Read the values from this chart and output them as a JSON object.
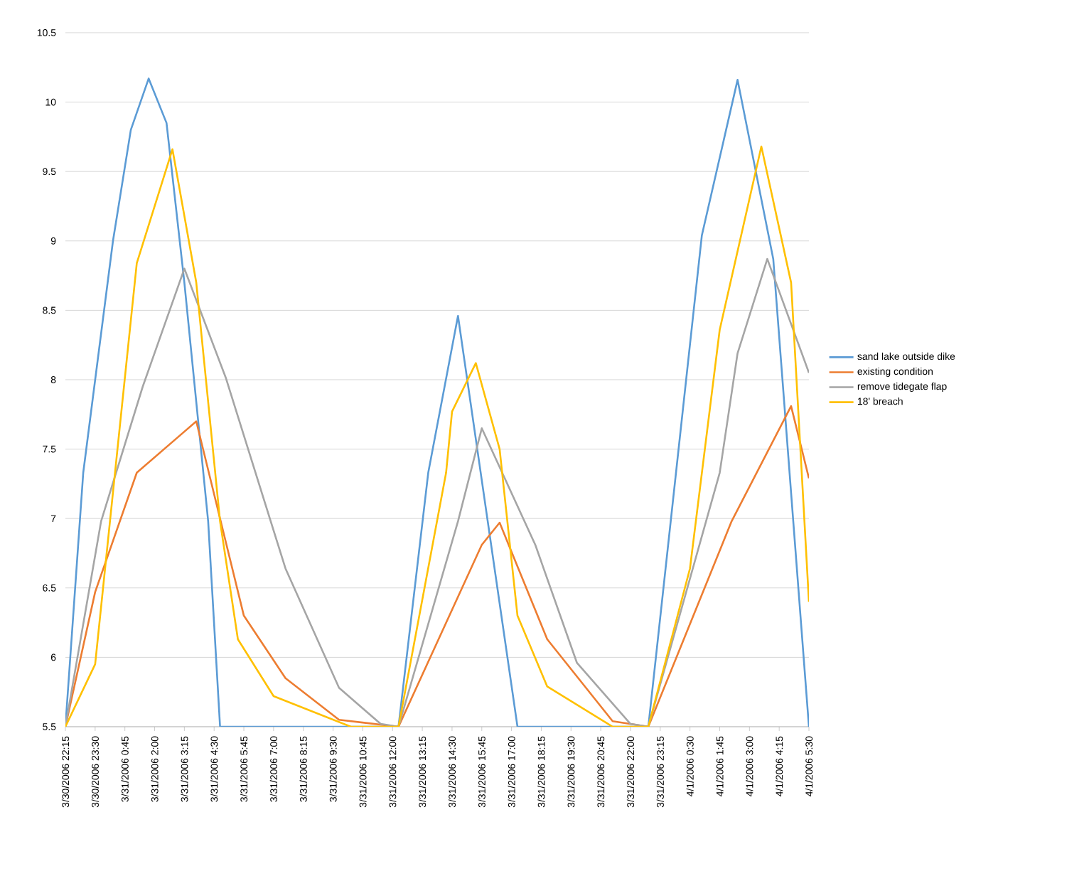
{
  "chart_data": {
    "type": "line",
    "xlim": [
      "2006-03-30T22:15",
      "2006-04-01T05:30"
    ],
    "ylim": [
      5.5,
      10.5
    ],
    "yticks": [
      5.5,
      6,
      6.5,
      7,
      7.5,
      8,
      8.5,
      9,
      9.5,
      10,
      10.5
    ],
    "xticks": [
      {
        "value": "2006-03-30T22:15",
        "label": "3/30/2006 22:15"
      },
      {
        "value": "2006-03-30T23:30",
        "label": "3/30/2006 23:30"
      },
      {
        "value": "2006-03-31T00:45",
        "label": "3/31/2006 0:45"
      },
      {
        "value": "2006-03-31T02:00",
        "label": "3/31/2006 2:00"
      },
      {
        "value": "2006-03-31T03:15",
        "label": "3/31/2006 3:15"
      },
      {
        "value": "2006-03-31T04:30",
        "label": "3/31/2006 4:30"
      },
      {
        "value": "2006-03-31T05:45",
        "label": "3/31/2006 5:45"
      },
      {
        "value": "2006-03-31T07:00",
        "label": "3/31/2006 7:00"
      },
      {
        "value": "2006-03-31T08:15",
        "label": "3/31/2006 8:15"
      },
      {
        "value": "2006-03-31T09:30",
        "label": "3/31/2006 9:30"
      },
      {
        "value": "2006-03-31T10:45",
        "label": "3/31/2006 10:45"
      },
      {
        "value": "2006-03-31T12:00",
        "label": "3/31/2006 12:00"
      },
      {
        "value": "2006-03-31T13:15",
        "label": "3/31/2006 13:15"
      },
      {
        "value": "2006-03-31T14:30",
        "label": "3/31/2006 14:30"
      },
      {
        "value": "2006-03-31T15:45",
        "label": "3/31/2006 15:45"
      },
      {
        "value": "2006-03-31T17:00",
        "label": "3/31/2006 17:00"
      },
      {
        "value": "2006-03-31T18:15",
        "label": "3/31/2006 18:15"
      },
      {
        "value": "2006-03-31T19:30",
        "label": "3/31/2006 19:30"
      },
      {
        "value": "2006-03-31T20:45",
        "label": "3/31/2006 20:45"
      },
      {
        "value": "2006-03-31T22:00",
        "label": "3/31/2006 22:00"
      },
      {
        "value": "2006-03-31T23:15",
        "label": "3/31/2006 23:15"
      },
      {
        "value": "2006-04-01T00:30",
        "label": "4/1/2006 0:30"
      },
      {
        "value": "2006-04-01T01:45",
        "label": "4/1/2006 1:45"
      },
      {
        "value": "2006-04-01T03:00",
        "label": "4/1/2006 3:00"
      },
      {
        "value": "2006-04-01T04:15",
        "label": "4/1/2006 4:15"
      },
      {
        "value": "2006-04-01T05:30",
        "label": "4/1/2006 5:30"
      }
    ],
    "grid": "y",
    "legend": "right",
    "marker": "none",
    "line_style": "solid",
    "series": [
      {
        "name": "sand lake outside dike",
        "color": "#5b9bd5",
        "x": [
          "2006-03-30T22:15",
          "2006-03-30T23:00",
          "2006-03-31T00:15",
          "2006-03-31T01:00",
          "2006-03-31T01:45",
          "2006-03-31T02:30",
          "2006-03-31T03:15",
          "2006-03-31T04:15",
          "2006-03-31T04:45",
          "2006-03-31T12:15",
          "2006-03-31T13:30",
          "2006-03-31T14:45",
          "2006-03-31T16:00",
          "2006-03-31T17:15",
          "2006-03-31T22:45",
          "2006-04-01T01:00",
          "2006-04-01T02:30",
          "2006-04-01T04:00",
          "2006-04-01T05:30"
        ],
        "values": [
          5.5,
          7.33,
          9.0,
          9.8,
          10.17,
          9.85,
          8.7,
          6.98,
          5.5,
          5.5,
          7.33,
          8.46,
          6.98,
          5.5,
          5.5,
          9.04,
          10.16,
          8.87,
          5.5
        ]
      },
      {
        "name": "existing condition",
        "color": "#ed7d31",
        "x": [
          "2006-03-30T22:15",
          "2006-03-30T23:30",
          "2006-03-31T01:15",
          "2006-03-31T03:45",
          "2006-03-31T05:45",
          "2006-03-31T07:30",
          "2006-03-31T09:45",
          "2006-03-31T12:15",
          "2006-03-31T15:45",
          "2006-03-31T16:30",
          "2006-03-31T18:30",
          "2006-03-31T21:15",
          "2006-03-31T22:45",
          "2006-04-01T02:15",
          "2006-04-01T04:45",
          "2006-04-01T05:30"
        ],
        "values": [
          5.5,
          6.47,
          7.33,
          7.7,
          6.3,
          5.85,
          5.55,
          5.5,
          6.81,
          6.97,
          6.13,
          5.54,
          5.5,
          6.98,
          7.81,
          7.29
        ]
      },
      {
        "name": "remove tidegate flap",
        "color": "#a5a5a5",
        "x": [
          "2006-03-30T22:15",
          "2006-03-30T23:45",
          "2006-03-31T01:30",
          "2006-03-31T03:15",
          "2006-03-31T05:00",
          "2006-03-31T07:30",
          "2006-03-31T09:45",
          "2006-03-31T11:30",
          "2006-03-31T12:15",
          "2006-03-31T14:45",
          "2006-03-31T15:45",
          "2006-03-31T18:00",
          "2006-03-31T19:45",
          "2006-03-31T22:00",
          "2006-03-31T22:45",
          "2006-04-01T01:45",
          "2006-04-01T02:30",
          "2006-04-01T03:45",
          "2006-04-01T05:30"
        ],
        "values": [
          5.5,
          6.98,
          7.95,
          8.8,
          8.01,
          6.64,
          5.78,
          5.52,
          5.5,
          6.98,
          7.65,
          6.81,
          5.96,
          5.52,
          5.5,
          7.33,
          8.19,
          8.87,
          8.05
        ]
      },
      {
        "name": "18' breach",
        "color": "#ffc000",
        "x": [
          "2006-03-30T22:15",
          "2006-03-30T23:30",
          "2006-03-31T01:15",
          "2006-03-31T02:45",
          "2006-03-31T03:45",
          "2006-03-31T04:45",
          "2006-03-31T05:30",
          "2006-03-31T07:00",
          "2006-03-31T10:15",
          "2006-03-31T12:15",
          "2006-03-31T14:15",
          "2006-03-31T14:30",
          "2006-03-31T15:30",
          "2006-03-31T16:30",
          "2006-03-31T17:15",
          "2006-03-31T18:30",
          "2006-03-31T21:15",
          "2006-03-31T22:45",
          "2006-04-01T00:30",
          "2006-04-01T01:45",
          "2006-04-01T03:30",
          "2006-04-01T04:45",
          "2006-04-01T05:30"
        ],
        "values": [
          5.5,
          5.95,
          8.84,
          9.66,
          8.7,
          6.98,
          6.13,
          5.72,
          5.5,
          5.5,
          7.33,
          7.77,
          8.12,
          7.5,
          6.3,
          5.79,
          5.5,
          5.5,
          6.64,
          8.36,
          9.68,
          8.7,
          6.4
        ]
      }
    ]
  }
}
